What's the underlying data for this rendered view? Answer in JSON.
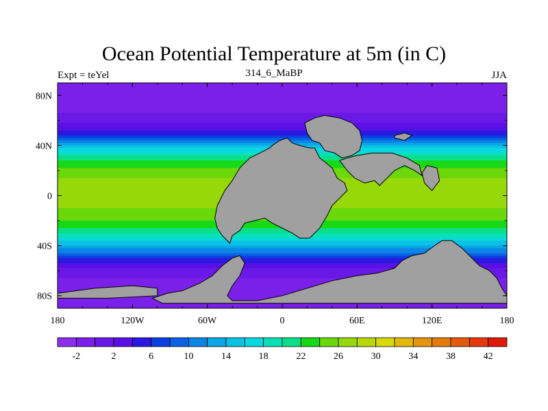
{
  "chart_data": {
    "type": "heatmap",
    "title": "Ocean Potential Temperature at 5m (in C)",
    "left_string": "Expt = teYel",
    "center_string": "314_6_MaBP",
    "right_string": "JJA",
    "x_tick_labels": [
      "180",
      "120W",
      "60W",
      "0",
      "60E",
      "120E",
      "180"
    ],
    "x_tick_values": [
      -180,
      -120,
      -60,
      0,
      60,
      120,
      180
    ],
    "y_tick_labels": [
      "80N",
      "40N",
      "0",
      "40S",
      "80S"
    ],
    "y_tick_values": [
      80,
      40,
      0,
      -40,
      -80
    ],
    "xlim": [
      -180,
      180
    ],
    "ylim": [
      -90,
      90
    ],
    "colorbar": {
      "levels": [
        -4,
        -2,
        0,
        2,
        4,
        6,
        8,
        10,
        12,
        14,
        16,
        18,
        20,
        22,
        24,
        26,
        28,
        30,
        32,
        34,
        36,
        38,
        40,
        42,
        44
      ],
      "labels": [
        "-2",
        "2",
        "6",
        "10",
        "14",
        "18",
        "22",
        "26",
        "30",
        "34",
        "38",
        "42"
      ],
      "label_values": [
        -2,
        2,
        6,
        10,
        14,
        18,
        22,
        26,
        30,
        34,
        38,
        42
      ],
      "colors": [
        "#8c30ec",
        "#7a20e8",
        "#6a18e6",
        "#5a10e4",
        "#2a1ae0",
        "#0a40e0",
        "#0a62e4",
        "#0a86e6",
        "#0aa6e6",
        "#0ac2e4",
        "#0ad8e0",
        "#0ae0b8",
        "#0ade88",
        "#18d818",
        "#6ad80a",
        "#96d80a",
        "#b8d80a",
        "#d8d80a",
        "#e2b80a",
        "#e4960a",
        "#e47a0a",
        "#e45a0a",
        "#e43a0a",
        "#e01a0a"
      ]
    },
    "zonal_profile": {
      "lat": [
        -90,
        -80,
        -70,
        -60,
        -50,
        -40,
        -30,
        -20,
        -10,
        0,
        10,
        20,
        30,
        40,
        50,
        60,
        70,
        80,
        90
      ],
      "temp": [
        -2,
        -1.8,
        -1,
        1,
        6,
        14,
        20,
        24,
        26,
        26,
        26.5,
        25,
        21,
        14,
        5,
        1,
        -1,
        -1.8,
        -1.8
      ]
    },
    "land_color": "#a0a0a0"
  }
}
